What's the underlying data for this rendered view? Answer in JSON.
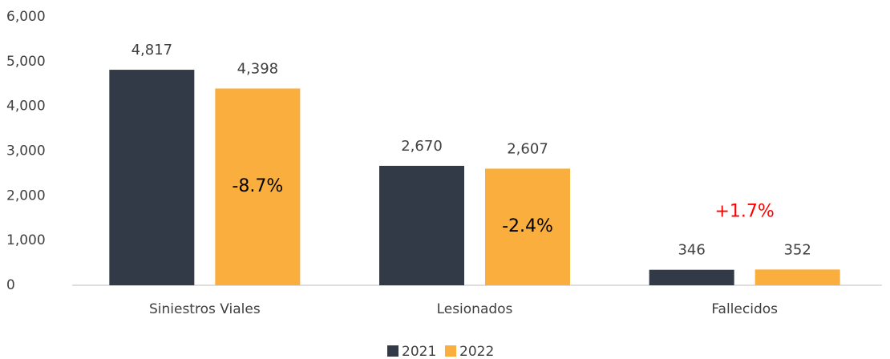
{
  "chart_data": {
    "type": "bar",
    "categories": [
      "Siniestros Viales",
      "Lesionados",
      "Fallecidos"
    ],
    "series": [
      {
        "name": "2021",
        "color": "#333a47",
        "values": [
          4817,
          2670,
          346
        ],
        "value_labels": [
          "4,817",
          "2,670",
          "346"
        ]
      },
      {
        "name": "2022",
        "color": "#f9ae3d",
        "values": [
          4398,
          2607,
          352
        ],
        "value_labels": [
          "4,398",
          "2,607",
          "352"
        ]
      }
    ],
    "annotations": [
      {
        "text": "-8.7%",
        "color": "#000000"
      },
      {
        "text": "-2.4%",
        "color": "#000000"
      },
      {
        "text": "+1.7%",
        "color": "#ff0000"
      }
    ],
    "ylim": [
      0,
      6000
    ],
    "yticks": [
      0,
      {
        "value": 1000,
        "label": "1,000"
      },
      {
        "value": 2000,
        "label": "2,000"
      },
      {
        "value": 3000,
        "label": "3,000"
      },
      {
        "value": 4000,
        "label": "4,000"
      },
      {
        "value": 5000,
        "label": "5,000"
      },
      {
        "value": 6000,
        "label": "6,000"
      }
    ],
    "grid": false,
    "legend": "bottom"
  }
}
